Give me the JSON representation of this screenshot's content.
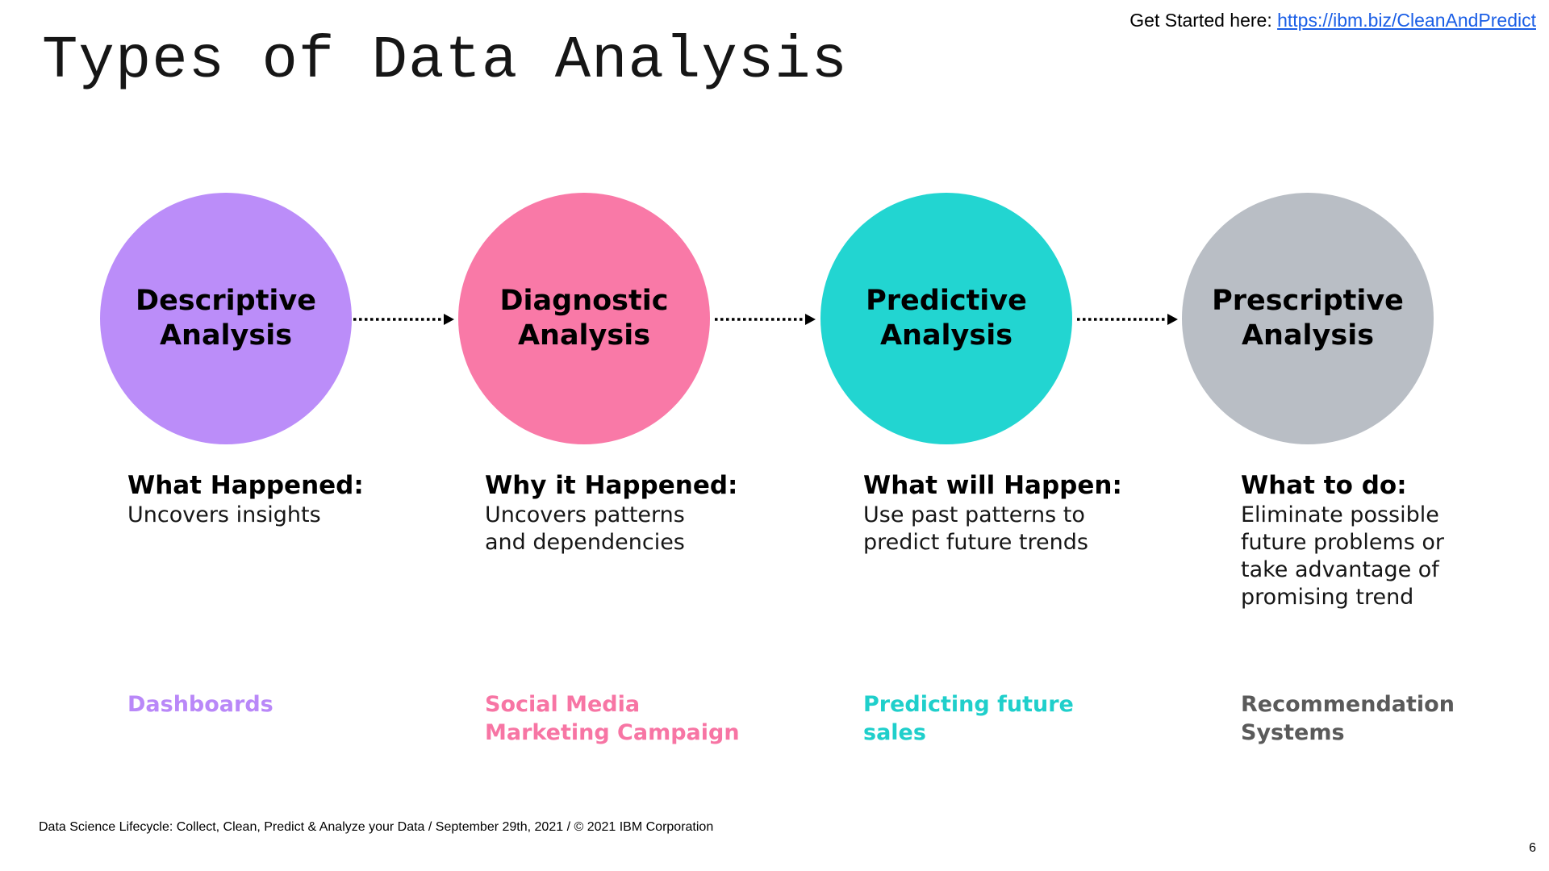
{
  "header": {
    "get_started_label": "Get Started here:",
    "get_started_link": "https://ibm.biz/CleanAndPredict"
  },
  "title": "Types of Data Analysis",
  "stages": [
    {
      "name": "Descriptive\nAnalysis",
      "color": "#bb8df9",
      "question": "What Happened:",
      "description": "Uncovers insights",
      "example": "Dashboards",
      "example_color": "#b988f8"
    },
    {
      "name": "Diagnostic\nAnalysis",
      "color": "#f979a7",
      "question": "Why it Happened:",
      "description": "Uncovers patterns\nand  dependencies",
      "example": "Social Media\nMarketing Campaign",
      "example_color": "#f775a4"
    },
    {
      "name": "Predictive\nAnalysis",
      "color": "#22d5d1",
      "question": "What will Happen:",
      "description": "Use past patterns to\npredict future trends",
      "example": "Predicting future\nsales",
      "example_color": "#1fcfcb"
    },
    {
      "name": "Prescriptive\nAnalysis",
      "color": "#b9bec5",
      "question": "What to do:",
      "description": "Eliminate possible\nfuture problems or\ntake advantage of\npromising trend",
      "example": "Recommendation\nSystems",
      "example_color": "#5a5a5a"
    }
  ],
  "footer": "Data Science Lifecycle: Collect, Clean, Predict & Analyze your Data / September 29th, 2021 / © 2021 IBM Corporation",
  "page_number": "6"
}
